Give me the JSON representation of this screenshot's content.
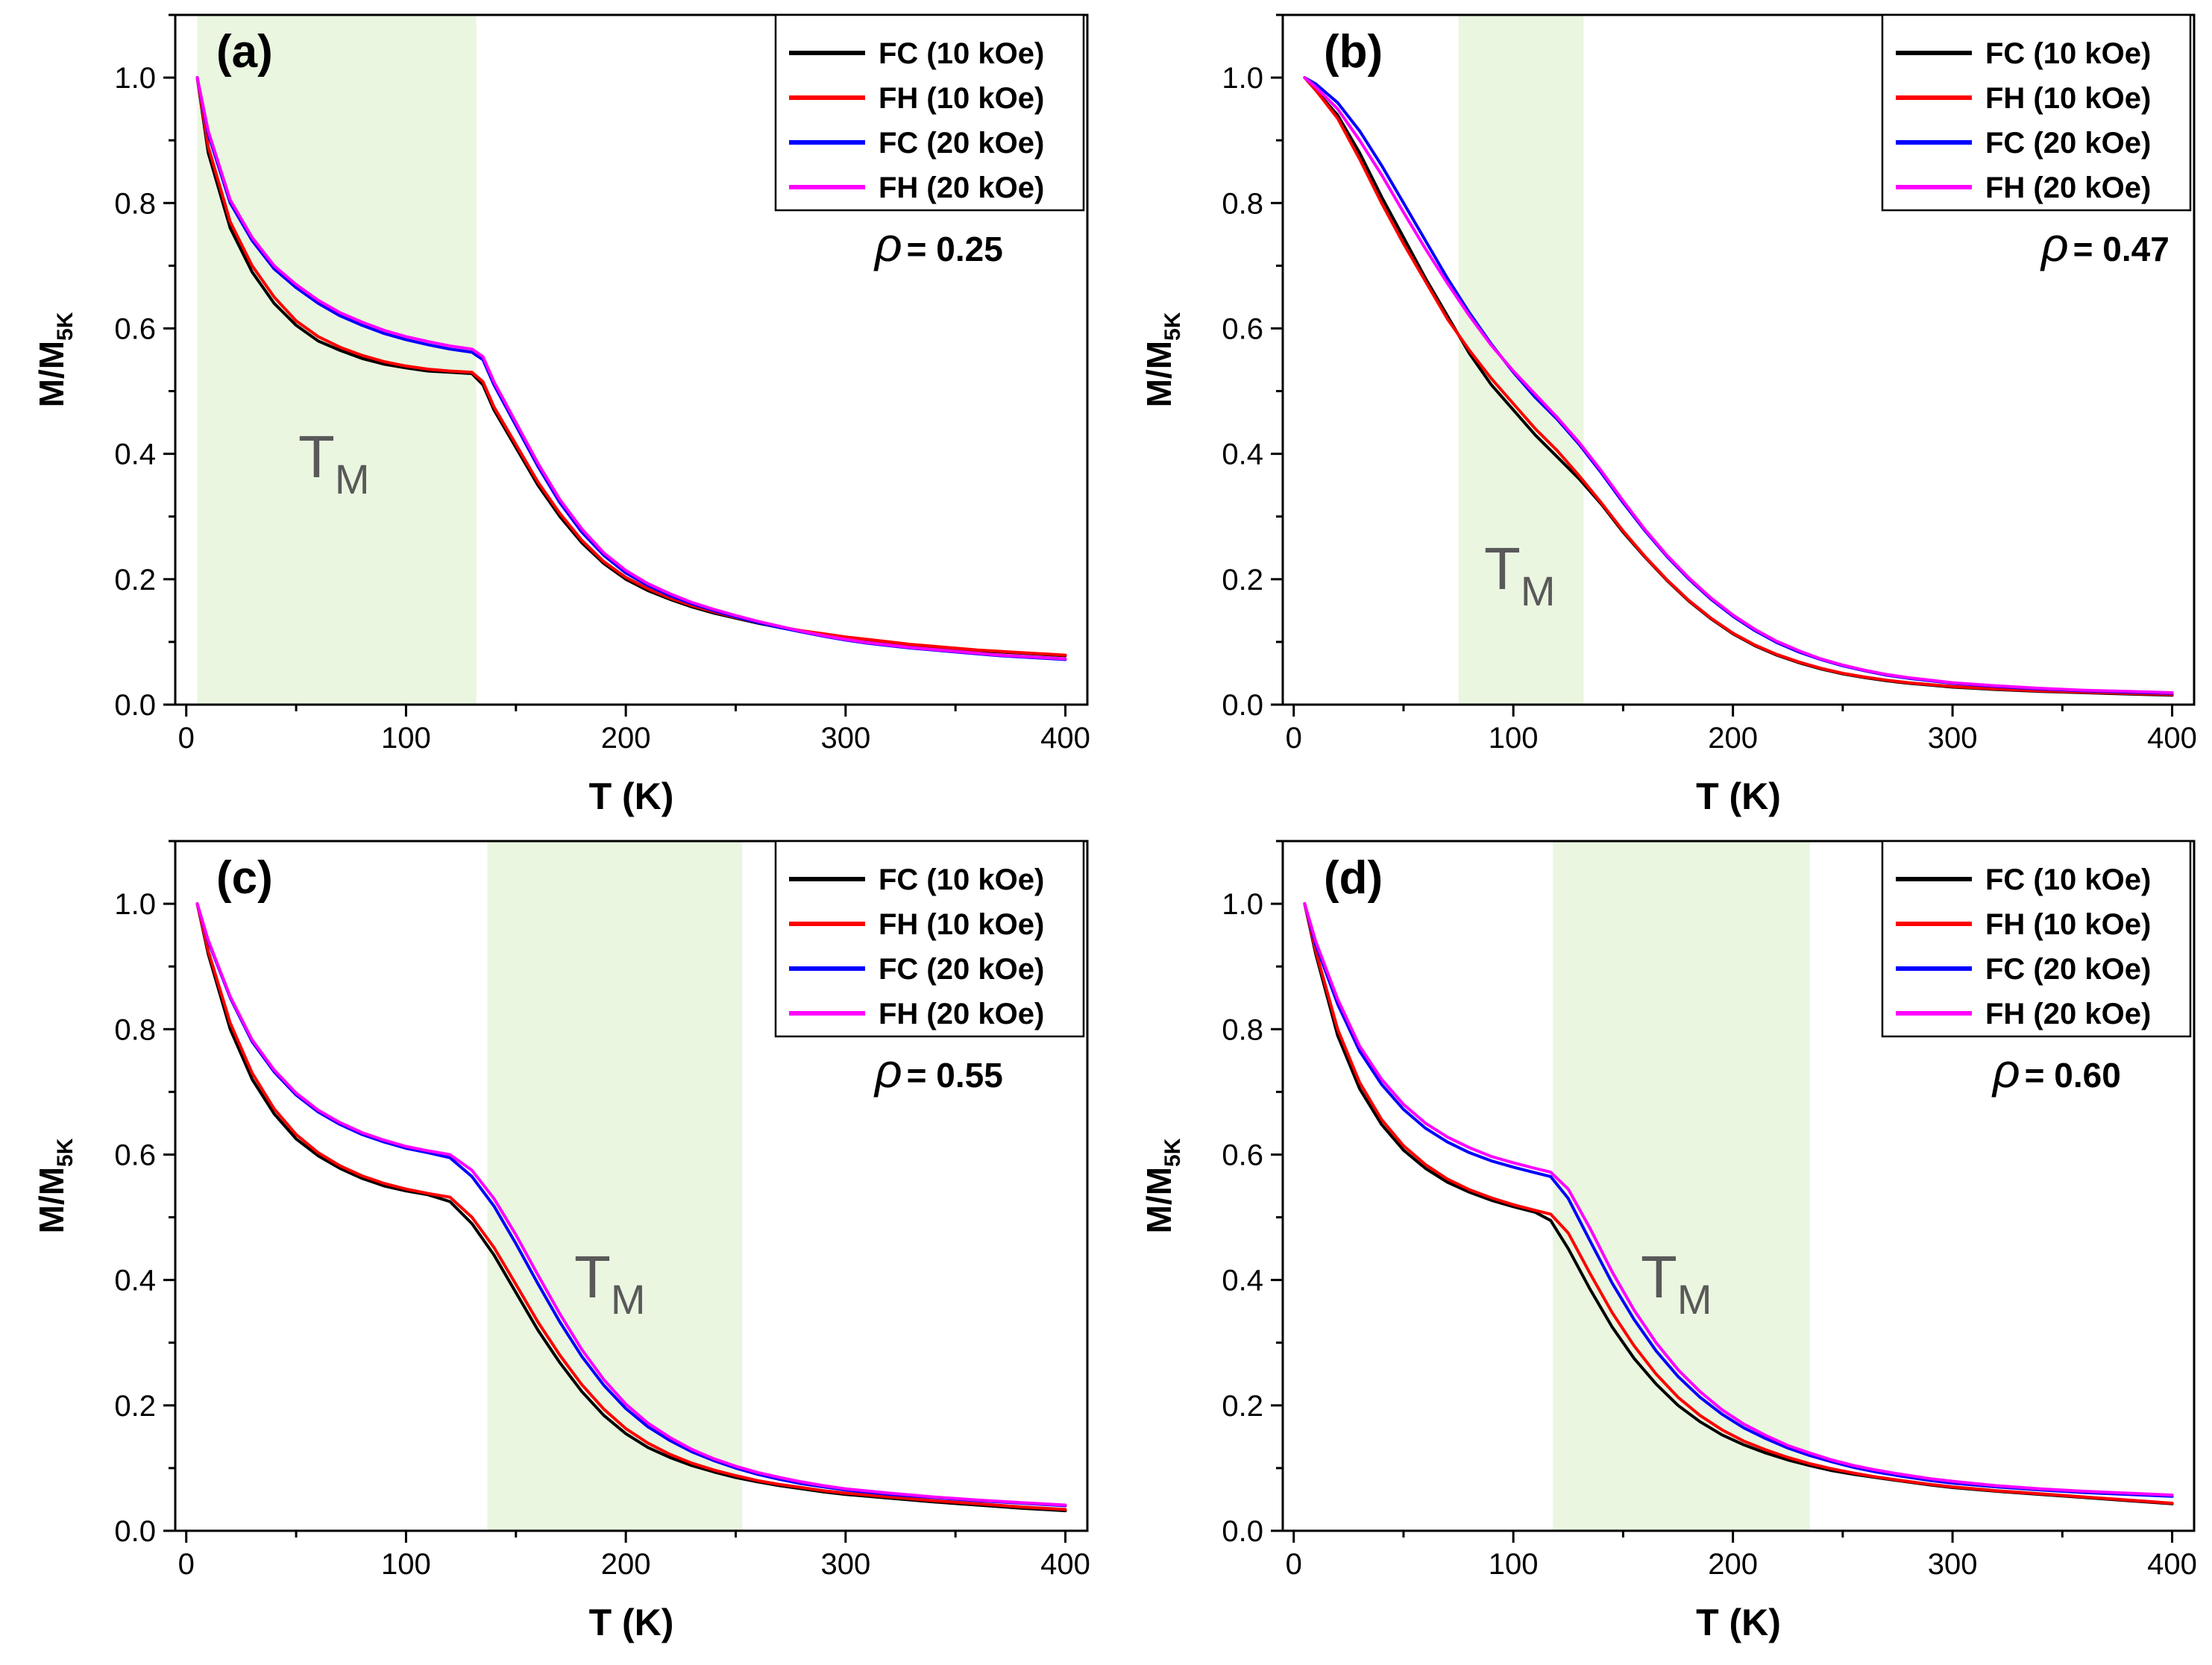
{
  "colors": {
    "shade": "#eaf6e0",
    "frame": "#000000",
    "tm_text": "#595959"
  },
  "chart_data": [
    {
      "type": "line",
      "panel_label": "(a)",
      "xlabel": "T (K)",
      "ylabel_main": "M/M",
      "ylabel_sub": "5K",
      "xlim": [
        -5,
        410
      ],
      "ylim": [
        0,
        1.1
      ],
      "xticks": [
        0,
        100,
        200,
        300,
        400
      ],
      "xtick_labels": [
        "0",
        "100",
        "200",
        "300",
        "400"
      ],
      "yticks": [
        0,
        0.2,
        0.4,
        0.6,
        0.8,
        1.0
      ],
      "ytick_labels": [
        "0.0",
        "0.2",
        "0.4",
        "0.6",
        "0.8",
        "1.0"
      ],
      "rho_symbol": "ρ",
      "rho_value": "= 0.25",
      "tm_main": "T",
      "tm_sub": "M",
      "shade_range": [
        5,
        132
      ],
      "x": [
        5,
        10,
        20,
        30,
        40,
        50,
        60,
        70,
        80,
        90,
        100,
        110,
        120,
        130,
        135,
        140,
        150,
        160,
        170,
        180,
        190,
        200,
        210,
        220,
        230,
        240,
        250,
        260,
        270,
        280,
        290,
        300,
        310,
        320,
        330,
        340,
        350,
        360,
        370,
        380,
        390,
        400
      ],
      "series": [
        {
          "name": "FC (10 kOe)",
          "color": "#000000",
          "values": [
            1.0,
            0.88,
            0.76,
            0.69,
            0.64,
            0.605,
            0.58,
            0.565,
            0.552,
            0.543,
            0.537,
            0.532,
            0.53,
            0.528,
            0.51,
            0.47,
            0.41,
            0.35,
            0.3,
            0.258,
            0.225,
            0.2,
            0.182,
            0.168,
            0.156,
            0.146,
            0.138,
            0.13,
            0.123,
            0.117,
            0.112,
            0.107,
            0.103,
            0.099,
            0.095,
            0.092,
            0.089,
            0.086,
            0.084,
            0.082,
            0.08,
            0.078
          ]
        },
        {
          "name": "FH (10 kOe)",
          "color": "#ff0000",
          "values": [
            1.0,
            0.89,
            0.77,
            0.7,
            0.65,
            0.612,
            0.587,
            0.57,
            0.557,
            0.547,
            0.54,
            0.535,
            0.532,
            0.53,
            0.515,
            0.475,
            0.415,
            0.355,
            0.305,
            0.262,
            0.228,
            0.203,
            0.185,
            0.17,
            0.158,
            0.148,
            0.139,
            0.131,
            0.124,
            0.118,
            0.113,
            0.108,
            0.104,
            0.1,
            0.096,
            0.093,
            0.09,
            0.087,
            0.085,
            0.083,
            0.081,
            0.079
          ]
        },
        {
          "name": "FC (20 kOe)",
          "color": "#0000ff",
          "values": [
            1.0,
            0.91,
            0.8,
            0.74,
            0.695,
            0.665,
            0.64,
            0.62,
            0.605,
            0.592,
            0.582,
            0.574,
            0.567,
            0.562,
            0.55,
            0.51,
            0.445,
            0.38,
            0.322,
            0.275,
            0.238,
            0.21,
            0.19,
            0.174,
            0.161,
            0.15,
            0.14,
            0.131,
            0.123,
            0.116,
            0.109,
            0.103,
            0.098,
            0.094,
            0.09,
            0.087,
            0.084,
            0.081,
            0.078,
            0.076,
            0.074,
            0.072
          ]
        },
        {
          "name": "FH (20 kOe)",
          "color": "#ff00ff",
          "values": [
            1.0,
            0.915,
            0.805,
            0.745,
            0.7,
            0.67,
            0.645,
            0.625,
            0.61,
            0.597,
            0.587,
            0.579,
            0.572,
            0.567,
            0.555,
            0.515,
            0.45,
            0.385,
            0.327,
            0.28,
            0.242,
            0.214,
            0.193,
            0.177,
            0.163,
            0.152,
            0.142,
            0.133,
            0.125,
            0.117,
            0.11,
            0.104,
            0.099,
            0.095,
            0.091,
            0.088,
            0.085,
            0.082,
            0.079,
            0.077,
            0.075,
            0.073
          ]
        }
      ]
    },
    {
      "type": "line",
      "panel_label": "(b)",
      "xlabel": "T (K)",
      "ylabel_main": "M/M",
      "ylabel_sub": "5K",
      "xlim": [
        -5,
        410
      ],
      "ylim": [
        0,
        1.1
      ],
      "xticks": [
        0,
        100,
        200,
        300,
        400
      ],
      "xtick_labels": [
        "0",
        "100",
        "200",
        "300",
        "400"
      ],
      "yticks": [
        0,
        0.2,
        0.4,
        0.6,
        0.8,
        1.0
      ],
      "ytick_labels": [
        "0.0",
        "0.2",
        "0.4",
        "0.6",
        "0.8",
        "1.0"
      ],
      "rho_symbol": "ρ",
      "rho_value": "= 0.47",
      "tm_main": "T",
      "tm_sub": "M",
      "shade_range": [
        75,
        132
      ],
      "x": [
        5,
        10,
        20,
        30,
        40,
        50,
        60,
        70,
        80,
        90,
        100,
        110,
        120,
        130,
        140,
        150,
        160,
        170,
        180,
        190,
        200,
        210,
        220,
        230,
        240,
        250,
        260,
        270,
        280,
        290,
        300,
        320,
        340,
        360,
        380,
        400
      ],
      "series": [
        {
          "name": "FC (10 kOe)",
          "color": "#000000",
          "values": [
            1.0,
            0.98,
            0.94,
            0.88,
            0.81,
            0.745,
            0.68,
            0.62,
            0.56,
            0.51,
            0.47,
            0.43,
            0.395,
            0.36,
            0.32,
            0.275,
            0.235,
            0.198,
            0.165,
            0.137,
            0.113,
            0.094,
            0.079,
            0.067,
            0.057,
            0.049,
            0.043,
            0.038,
            0.034,
            0.031,
            0.028,
            0.024,
            0.021,
            0.019,
            0.017,
            0.015
          ]
        },
        {
          "name": "FH (10 kOe)",
          "color": "#ff0000",
          "values": [
            1.0,
            0.98,
            0.935,
            0.87,
            0.8,
            0.735,
            0.675,
            0.615,
            0.565,
            0.52,
            0.48,
            0.44,
            0.405,
            0.365,
            0.322,
            0.277,
            0.236,
            0.199,
            0.166,
            0.138,
            0.114,
            0.095,
            0.08,
            0.068,
            0.058,
            0.05,
            0.044,
            0.039,
            0.035,
            0.032,
            0.029,
            0.025,
            0.022,
            0.02,
            0.018,
            0.016
          ]
        },
        {
          "name": "FC (20 kOe)",
          "color": "#0000ff",
          "values": [
            1.0,
            0.99,
            0.96,
            0.915,
            0.86,
            0.8,
            0.74,
            0.68,
            0.625,
            0.575,
            0.53,
            0.49,
            0.455,
            0.415,
            0.37,
            0.322,
            0.277,
            0.236,
            0.2,
            0.168,
            0.141,
            0.118,
            0.099,
            0.084,
            0.072,
            0.062,
            0.054,
            0.047,
            0.042,
            0.038,
            0.034,
            0.029,
            0.025,
            0.022,
            0.02,
            0.018
          ]
        },
        {
          "name": "FH (20 kOe)",
          "color": "#ff00ff",
          "values": [
            1.0,
            0.985,
            0.95,
            0.9,
            0.845,
            0.785,
            0.727,
            0.672,
            0.62,
            0.573,
            0.532,
            0.495,
            0.458,
            0.418,
            0.373,
            0.325,
            0.279,
            0.238,
            0.202,
            0.17,
            0.143,
            0.12,
            0.101,
            0.086,
            0.073,
            0.063,
            0.055,
            0.048,
            0.043,
            0.039,
            0.035,
            0.03,
            0.026,
            0.023,
            0.021,
            0.019
          ]
        }
      ]
    },
    {
      "type": "line",
      "panel_label": "(c)",
      "xlabel": "T (K)",
      "ylabel_main": "M/M",
      "ylabel_sub": "5K",
      "xlim": [
        -5,
        410
      ],
      "ylim": [
        0,
        1.1
      ],
      "xticks": [
        0,
        100,
        200,
        300,
        400
      ],
      "xtick_labels": [
        "0",
        "100",
        "200",
        "300",
        "400"
      ],
      "yticks": [
        0,
        0.2,
        0.4,
        0.6,
        0.8,
        1.0
      ],
      "ytick_labels": [
        "0.0",
        "0.2",
        "0.4",
        "0.6",
        "0.8",
        "1.0"
      ],
      "rho_symbol": "ρ",
      "rho_value": "= 0.55",
      "tm_main": "T",
      "tm_sub": "M",
      "shade_range": [
        137,
        253
      ],
      "x": [
        5,
        10,
        20,
        30,
        40,
        50,
        60,
        70,
        80,
        90,
        100,
        110,
        120,
        130,
        140,
        150,
        160,
        170,
        180,
        190,
        200,
        210,
        220,
        230,
        240,
        250,
        260,
        270,
        280,
        290,
        300,
        320,
        340,
        360,
        380,
        400
      ],
      "series": [
        {
          "name": "FC (10 kOe)",
          "color": "#000000",
          "values": [
            1.0,
            0.92,
            0.8,
            0.72,
            0.665,
            0.625,
            0.598,
            0.578,
            0.562,
            0.55,
            0.542,
            0.536,
            0.525,
            0.49,
            0.44,
            0.38,
            0.32,
            0.268,
            0.222,
            0.184,
            0.155,
            0.133,
            0.117,
            0.104,
            0.094,
            0.085,
            0.078,
            0.072,
            0.067,
            0.062,
            0.058,
            0.052,
            0.046,
            0.041,
            0.036,
            0.032
          ]
        },
        {
          "name": "FH (10 kOe)",
          "color": "#ff0000",
          "values": [
            1.0,
            0.925,
            0.81,
            0.73,
            0.673,
            0.632,
            0.603,
            0.582,
            0.566,
            0.554,
            0.545,
            0.538,
            0.532,
            0.5,
            0.452,
            0.393,
            0.333,
            0.28,
            0.233,
            0.194,
            0.163,
            0.14,
            0.122,
            0.108,
            0.097,
            0.088,
            0.08,
            0.074,
            0.069,
            0.064,
            0.06,
            0.054,
            0.048,
            0.043,
            0.038,
            0.034
          ]
        },
        {
          "name": "FC (20 kOe)",
          "color": "#0000ff",
          "values": [
            1.0,
            0.94,
            0.85,
            0.78,
            0.732,
            0.695,
            0.668,
            0.648,
            0.632,
            0.62,
            0.61,
            0.603,
            0.595,
            0.565,
            0.518,
            0.458,
            0.394,
            0.333,
            0.278,
            0.232,
            0.195,
            0.166,
            0.144,
            0.126,
            0.112,
            0.1,
            0.09,
            0.082,
            0.075,
            0.07,
            0.065,
            0.058,
            0.053,
            0.048,
            0.044,
            0.04
          ]
        },
        {
          "name": "FH (20 kOe)",
          "color": "#ff00ff",
          "values": [
            1.0,
            0.942,
            0.852,
            0.783,
            0.735,
            0.698,
            0.671,
            0.651,
            0.635,
            0.623,
            0.613,
            0.606,
            0.6,
            0.575,
            0.53,
            0.472,
            0.408,
            0.346,
            0.289,
            0.241,
            0.202,
            0.172,
            0.149,
            0.13,
            0.115,
            0.103,
            0.093,
            0.085,
            0.078,
            0.072,
            0.067,
            0.06,
            0.054,
            0.049,
            0.045,
            0.041
          ]
        }
      ]
    },
    {
      "type": "line",
      "panel_label": "(d)",
      "xlabel": "T (K)",
      "ylabel_main": "M/M",
      "ylabel_sub": "5K",
      "xlim": [
        -5,
        410
      ],
      "ylim": [
        0,
        1.1
      ],
      "xticks": [
        0,
        100,
        200,
        300,
        400
      ],
      "xtick_labels": [
        "0",
        "100",
        "200",
        "300",
        "400"
      ],
      "yticks": [
        0,
        0.2,
        0.4,
        0.6,
        0.8,
        1.0
      ],
      "ytick_labels": [
        "0.0",
        "0.2",
        "0.4",
        "0.6",
        "0.8",
        "1.0"
      ],
      "rho_symbol": "ρ",
      "rho_value": "= 0.60",
      "tm_main": "T",
      "tm_sub": "M",
      "shade_range": [
        118,
        235
      ],
      "x": [
        5,
        10,
        20,
        30,
        40,
        50,
        60,
        70,
        80,
        90,
        100,
        110,
        117,
        125,
        135,
        145,
        155,
        165,
        175,
        185,
        195,
        205,
        215,
        225,
        235,
        245,
        255,
        265,
        275,
        290,
        300,
        320,
        340,
        360,
        380,
        400
      ],
      "series": [
        {
          "name": "FC (10 kOe)",
          "color": "#000000",
          "values": [
            1.0,
            0.92,
            0.79,
            0.705,
            0.648,
            0.607,
            0.578,
            0.556,
            0.54,
            0.527,
            0.517,
            0.508,
            0.495,
            0.45,
            0.385,
            0.325,
            0.275,
            0.234,
            0.2,
            0.174,
            0.153,
            0.137,
            0.124,
            0.113,
            0.104,
            0.096,
            0.09,
            0.085,
            0.08,
            0.073,
            0.069,
            0.063,
            0.058,
            0.053,
            0.048,
            0.043
          ]
        },
        {
          "name": "FH (10 kOe)",
          "color": "#ff0000",
          "values": [
            1.0,
            0.925,
            0.8,
            0.715,
            0.656,
            0.614,
            0.584,
            0.561,
            0.544,
            0.531,
            0.52,
            0.511,
            0.505,
            0.475,
            0.41,
            0.348,
            0.295,
            0.25,
            0.213,
            0.184,
            0.161,
            0.143,
            0.129,
            0.117,
            0.107,
            0.099,
            0.092,
            0.086,
            0.081,
            0.074,
            0.07,
            0.064,
            0.059,
            0.054,
            0.049,
            0.044
          ]
        },
        {
          "name": "FC (20 kOe)",
          "color": "#0000ff",
          "values": [
            1.0,
            0.935,
            0.84,
            0.765,
            0.712,
            0.672,
            0.642,
            0.62,
            0.603,
            0.59,
            0.58,
            0.571,
            0.565,
            0.53,
            0.462,
            0.395,
            0.337,
            0.287,
            0.246,
            0.213,
            0.186,
            0.164,
            0.147,
            0.132,
            0.12,
            0.11,
            0.101,
            0.094,
            0.088,
            0.08,
            0.076,
            0.07,
            0.065,
            0.061,
            0.058,
            0.055
          ]
        },
        {
          "name": "FH (20 kOe)",
          "color": "#ff00ff",
          "values": [
            1.0,
            0.94,
            0.848,
            0.773,
            0.72,
            0.68,
            0.65,
            0.628,
            0.611,
            0.597,
            0.587,
            0.578,
            0.572,
            0.545,
            0.482,
            0.413,
            0.352,
            0.3,
            0.257,
            0.222,
            0.193,
            0.17,
            0.152,
            0.136,
            0.124,
            0.113,
            0.104,
            0.097,
            0.091,
            0.083,
            0.079,
            0.072,
            0.067,
            0.063,
            0.06,
            0.057
          ]
        }
      ]
    }
  ]
}
